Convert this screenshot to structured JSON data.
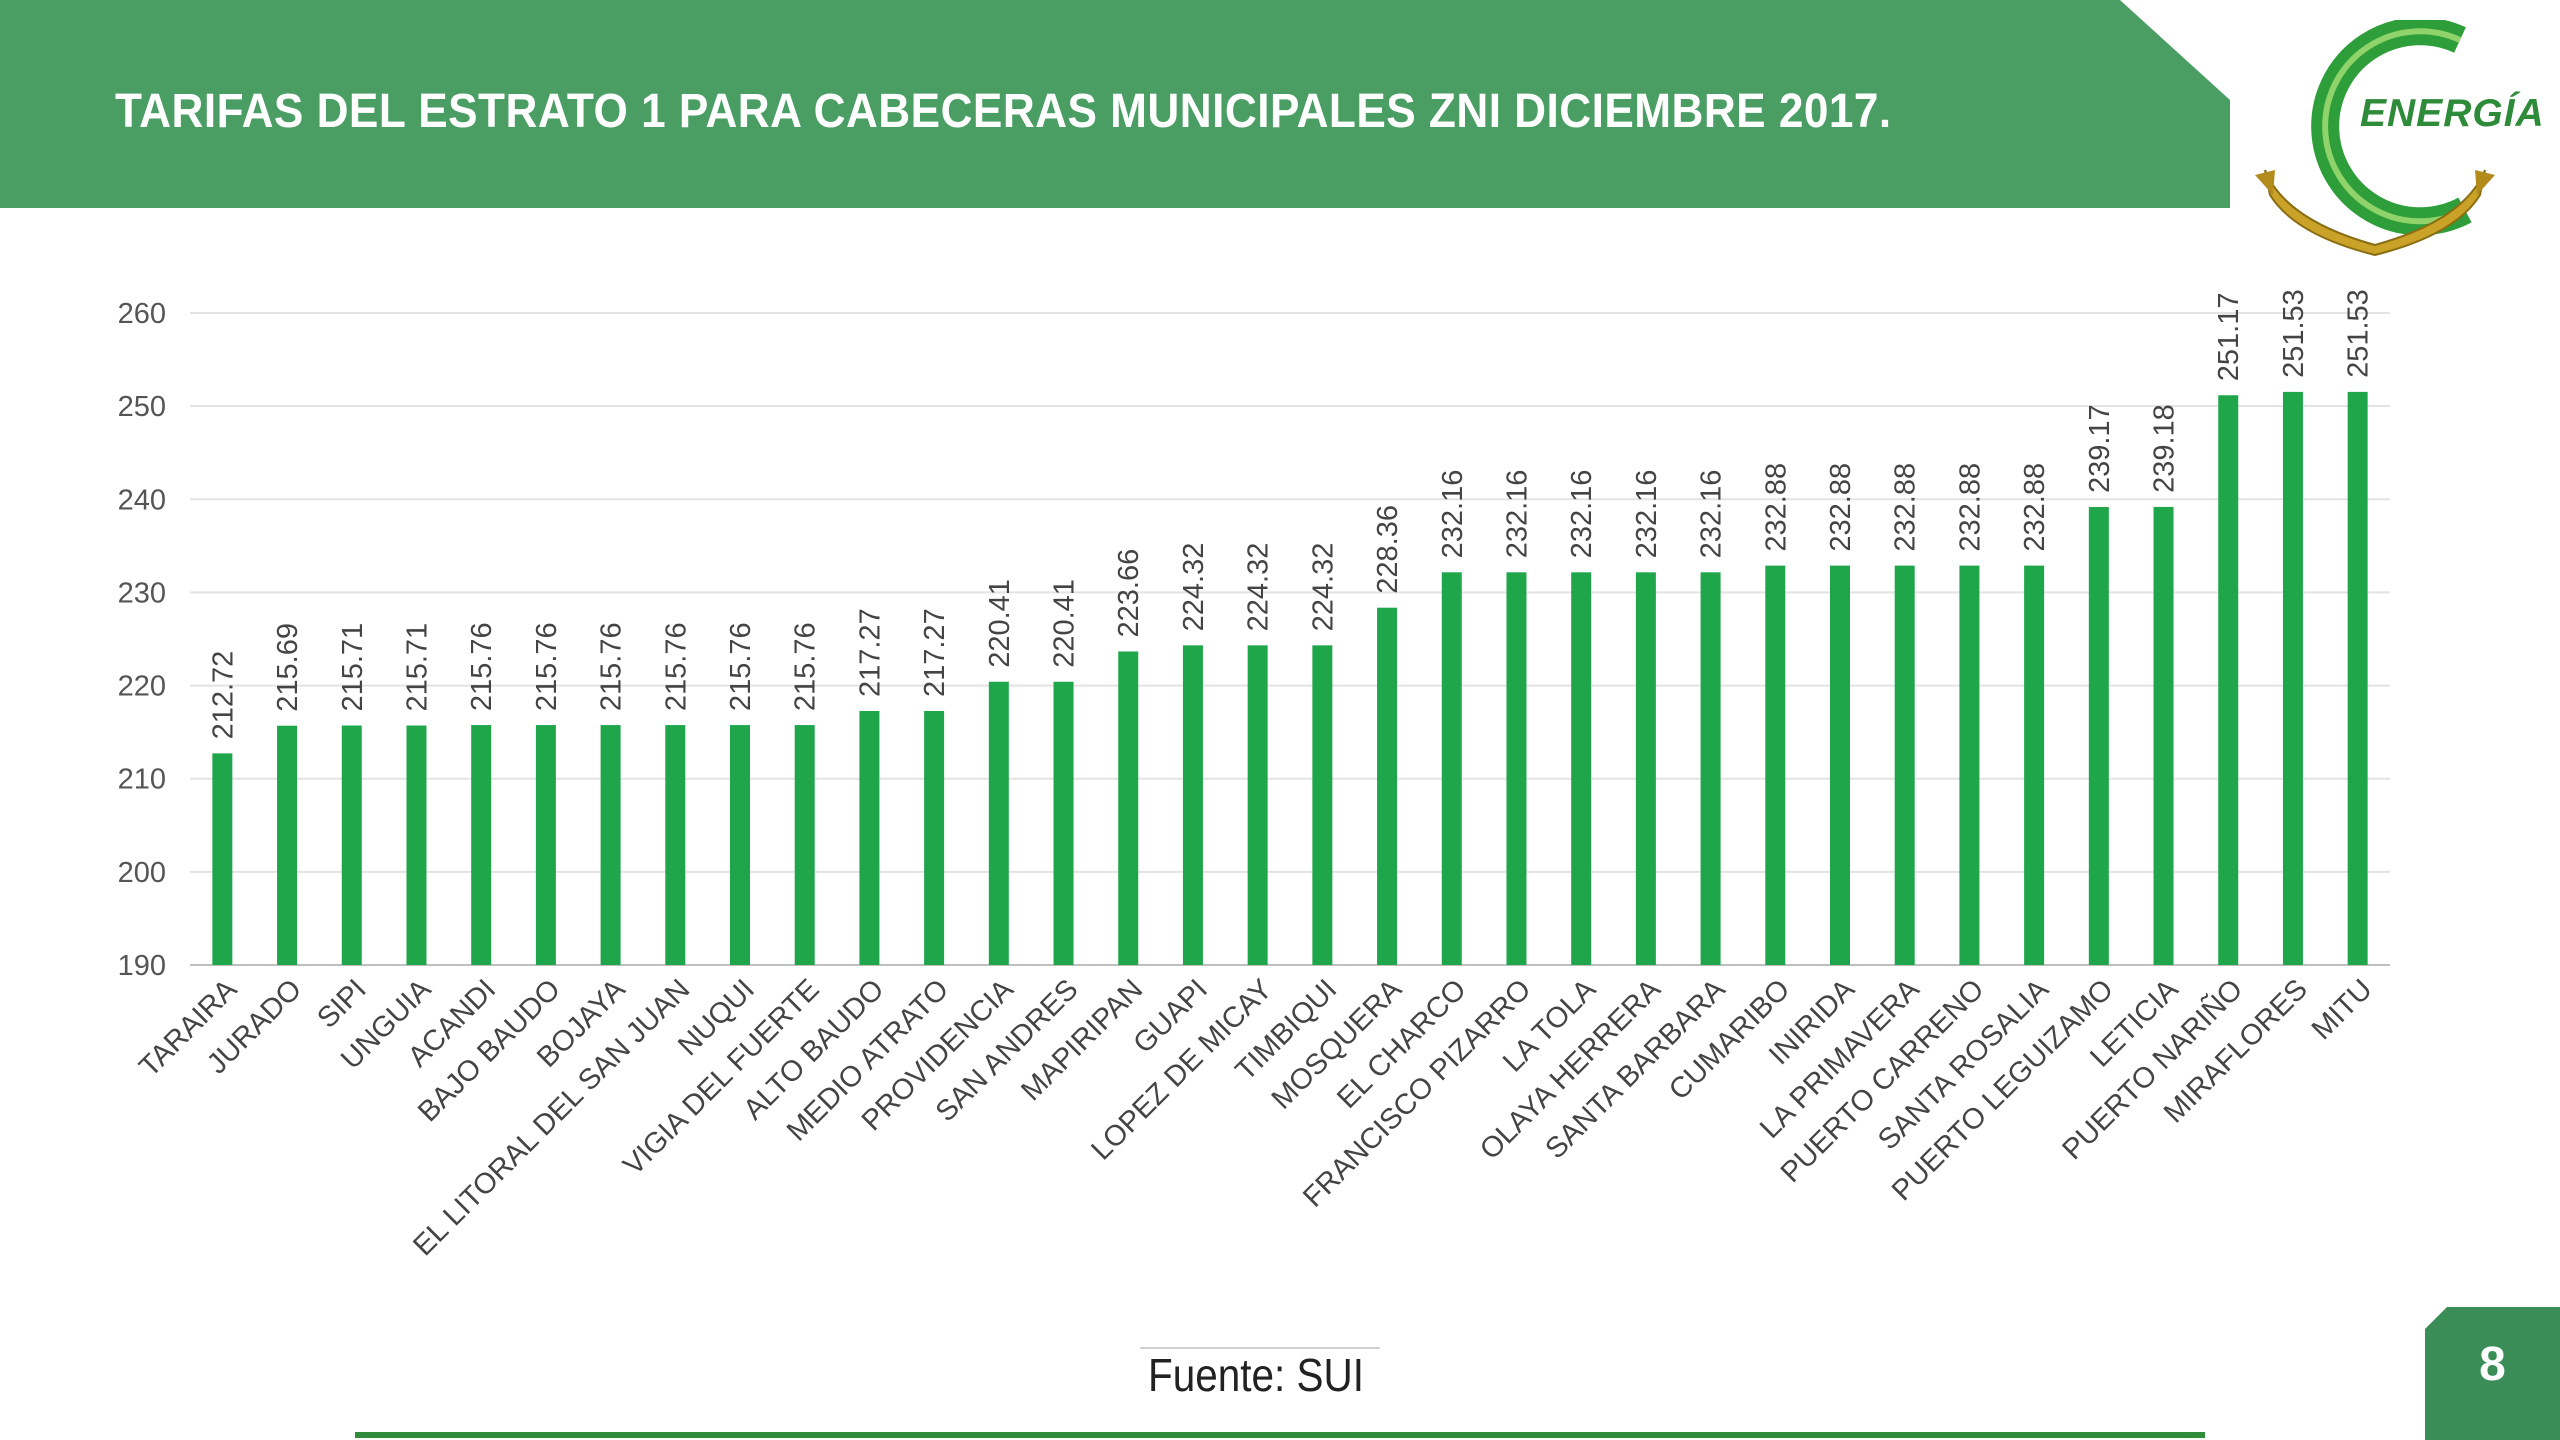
{
  "header": {
    "title": "TARIFAS DEL ESTRATO 1 PARA  CABECERAS MUNICIPALES ZNI DICIEMBRE  2017.",
    "banner_color": "#4a9e64"
  },
  "logo": {
    "text": "ENERGÍA",
    "ring_color": "#2e9e3a",
    "ribbon_color": "#c9a227",
    "icon": "energia-logo"
  },
  "chart_data": {
    "type": "bar",
    "title": "",
    "xlabel": "",
    "ylabel": "",
    "ylim": [
      190,
      260
    ],
    "yticks": [
      190,
      200,
      210,
      220,
      230,
      240,
      250,
      260
    ],
    "grid": true,
    "bar_color": "#1fa64a",
    "categories": [
      "TARAIRA",
      "JURADO",
      "SIPI",
      "UNGUIA",
      "ACANDI",
      "BAJO BAUDO",
      "BOJAYA",
      "EL LITORAL DEL SAN JUAN",
      "NUQUI",
      "VIGIA DEL FUERTE",
      "ALTO BAUDO",
      "MEDIO ATRATO",
      "PROVIDENCIA",
      "SAN ANDRES",
      "MAPIRIPAN",
      "GUAPI",
      "LOPEZ DE MICAY",
      "TIMBIQUI",
      "MOSQUERA",
      "EL CHARCO",
      "FRANCISCO PIZARRO",
      "LA TOLA",
      "OLAYA HERRERA",
      "SANTA BARBARA",
      "CUMARIBO",
      "INIRIDA",
      "LA PRIMAVERA",
      "PUERTO CARRENO",
      "SANTA ROSALIA",
      "PUERTO LEGUIZAMO",
      "LETICIA",
      "PUERTO NARIÑO",
      "MIRAFLORES",
      "MITU"
    ],
    "values": [
      212.72,
      215.69,
      215.71,
      215.71,
      215.76,
      215.76,
      215.76,
      215.76,
      215.76,
      215.76,
      217.27,
      217.27,
      220.41,
      220.41,
      223.66,
      224.32,
      224.32,
      224.32,
      228.36,
      232.16,
      232.16,
      232.16,
      232.16,
      232.16,
      232.88,
      232.88,
      232.88,
      232.88,
      232.88,
      239.17,
      239.18,
      251.17,
      251.53,
      251.53
    ]
  },
  "footer": {
    "source": "Fuente: SUI",
    "page_number": "8",
    "accent_color": "#2e8b3a"
  }
}
